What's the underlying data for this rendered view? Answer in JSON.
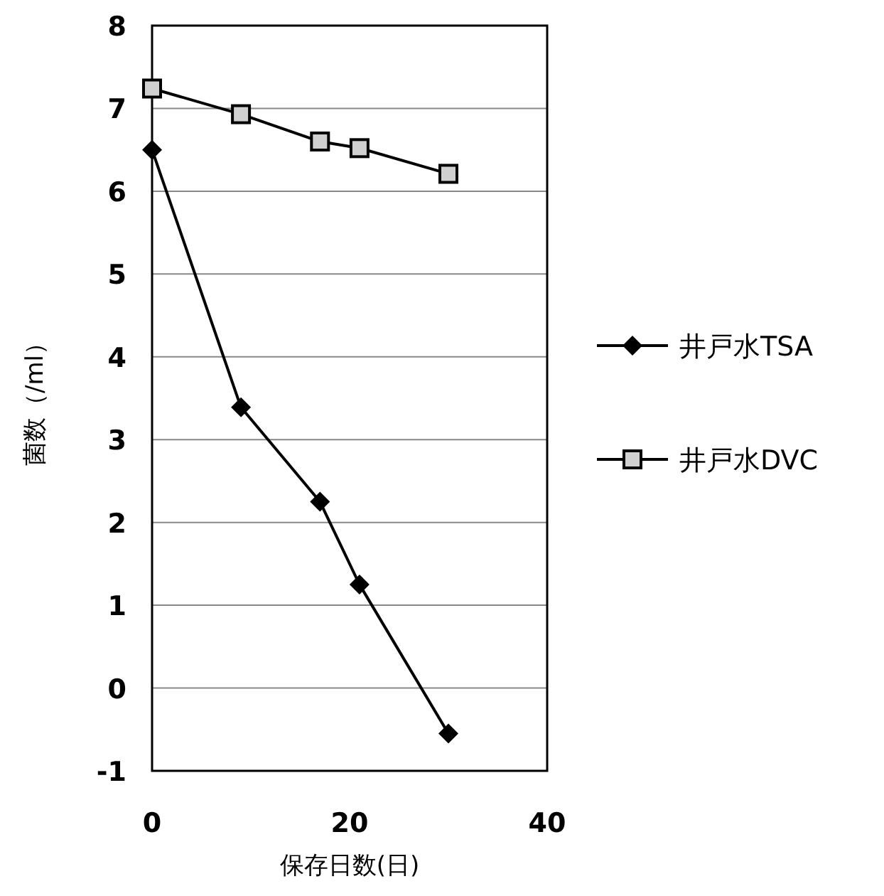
{
  "chart_data": {
    "type": "line",
    "xlabel": "保存日数(日)",
    "ylabel": "菌数（/ml）",
    "xlim": [
      0,
      40
    ],
    "xticks": [
      0,
      20,
      40
    ],
    "ylim": [
      -1,
      8
    ],
    "yticks": [
      -1,
      0,
      1,
      2,
      3,
      4,
      5,
      6,
      7,
      8
    ],
    "grid": "y",
    "legend": "right",
    "line_style": "solid",
    "series": [
      {
        "name": "井戸水TSA",
        "color": "#000000",
        "marker": "diamond",
        "x": [
          0,
          9,
          17,
          21,
          30
        ],
        "values": [
          6.5,
          3.39,
          2.25,
          1.25,
          -0.55
        ]
      },
      {
        "name": "井戸水DVC",
        "color": "#000000",
        "marker": "square",
        "x": [
          0,
          9,
          17,
          21,
          30
        ],
        "values": [
          7.24,
          6.93,
          6.6,
          6.52,
          6.21
        ]
      }
    ]
  }
}
